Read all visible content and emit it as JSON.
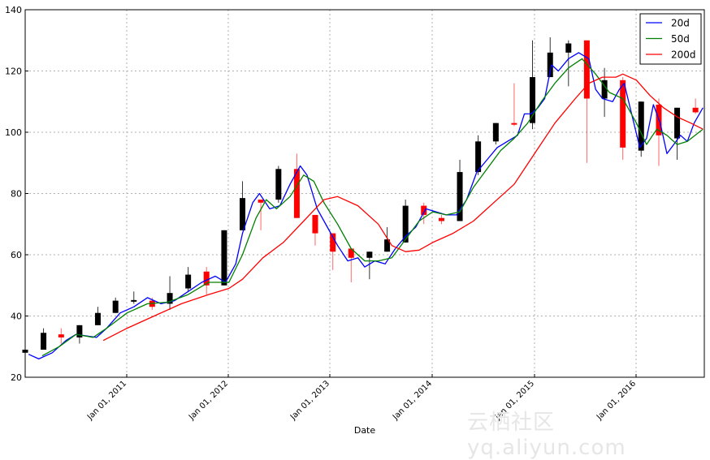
{
  "chart_data": {
    "type": "candlestick",
    "title": "",
    "xlabel": "Date",
    "ylabel": "",
    "ylim": [
      20,
      140
    ],
    "yticks": [
      20,
      40,
      60,
      80,
      100,
      120,
      140
    ],
    "xticks": [
      "Jan 01, 2011",
      "Jan 01, 2012",
      "Jan 01, 2013",
      "Jan 01, 2014",
      "Jan 01, 2015",
      "Jan 01, 2016"
    ],
    "grid": true,
    "legend": {
      "position": "upper right",
      "entries": [
        {
          "label": "20d",
          "color": "#0000ff"
        },
        {
          "label": "50d",
          "color": "#008000"
        },
        {
          "label": "200d",
          "color": "#ff0000"
        }
      ]
    },
    "candles": [
      {
        "t": 0.0,
        "o": 28,
        "c": 29,
        "h": 29,
        "l": 28
      },
      {
        "t": 0.027,
        "o": 29,
        "c": 34.5,
        "h": 36,
        "l": 29
      },
      {
        "t": 0.053,
        "o": 34,
        "c": 33,
        "h": 36,
        "l": 31
      },
      {
        "t": 0.08,
        "o": 33,
        "c": 37,
        "h": 37,
        "l": 31
      },
      {
        "t": 0.107,
        "o": 37,
        "c": 41,
        "h": 43,
        "l": 37
      },
      {
        "t": 0.133,
        "o": 41,
        "c": 45,
        "h": 46,
        "l": 41
      },
      {
        "t": 0.16,
        "o": 44.8,
        "c": 45.2,
        "h": 48,
        "l": 44
      },
      {
        "t": 0.187,
        "o": 45,
        "c": 43,
        "h": 46,
        "l": 42
      },
      {
        "t": 0.213,
        "o": 44,
        "c": 47.5,
        "h": 53,
        "l": 42
      },
      {
        "t": 0.24,
        "o": 49,
        "c": 53.5,
        "h": 56,
        "l": 48
      },
      {
        "t": 0.267,
        "o": 54.5,
        "c": 50,
        "h": 56,
        "l": 47
      },
      {
        "t": 0.293,
        "o": 50,
        "c": 68,
        "h": 68,
        "l": 50
      },
      {
        "t": 0.32,
        "o": 68,
        "c": 78.5,
        "h": 84,
        "l": 68
      },
      {
        "t": 0.347,
        "o": 78,
        "c": 77,
        "h": 78,
        "l": 68
      },
      {
        "t": 0.373,
        "o": 78,
        "c": 88,
        "h": 89,
        "l": 77
      },
      {
        "t": 0.4,
        "o": 88,
        "c": 72,
        "h": 93,
        "l": 72
      },
      {
        "t": 0.427,
        "o": 73,
        "c": 67,
        "h": 73,
        "l": 63
      },
      {
        "t": 0.453,
        "o": 67,
        "c": 61,
        "h": 67,
        "l": 55
      },
      {
        "t": 0.48,
        "o": 62,
        "c": 59,
        "h": 62,
        "l": 51
      },
      {
        "t": 0.507,
        "o": 59,
        "c": 61,
        "h": 61,
        "l": 52
      },
      {
        "t": 0.533,
        "o": 61,
        "c": 65,
        "h": 69,
        "l": 61
      },
      {
        "t": 0.56,
        "o": 64,
        "c": 76,
        "h": 78,
        "l": 64
      },
      {
        "t": 0.587,
        "o": 76,
        "c": 73,
        "h": 77,
        "l": 70
      },
      {
        "t": 0.613,
        "o": 72,
        "c": 71,
        "h": 73,
        "l": 70
      },
      {
        "t": 0.64,
        "o": 71,
        "c": 87,
        "h": 91,
        "l": 71
      },
      {
        "t": 0.667,
        "o": 87,
        "c": 97,
        "h": 99,
        "l": 86
      },
      {
        "t": 0.693,
        "o": 97,
        "c": 103,
        "h": 103,
        "l": 96
      },
      {
        "t": 0.72,
        "o": 103,
        "c": 102.5,
        "h": 116,
        "l": 102
      },
      {
        "t": 0.747,
        "o": 103,
        "c": 118,
        "h": 130,
        "l": 101
      },
      {
        "t": 0.773,
        "o": 118,
        "c": 126,
        "h": 131,
        "l": 118
      },
      {
        "t": 0.8,
        "o": 126,
        "c": 129,
        "h": 130,
        "l": 115
      },
      {
        "t": 0.827,
        "o": 130,
        "c": 111,
        "h": 130,
        "l": 90
      },
      {
        "t": 0.853,
        "o": 111,
        "c": 117,
        "h": 121,
        "l": 105
      },
      {
        "t": 0.88,
        "o": 117,
        "c": 95,
        "h": 118,
        "l": 91
      },
      {
        "t": 0.907,
        "o": 94,
        "c": 110,
        "h": 110,
        "l": 92
      },
      {
        "t": 0.933,
        "o": 109,
        "c": 99,
        "h": 111,
        "l": 89
      },
      {
        "t": 0.96,
        "o": 98,
        "c": 108,
        "h": 108,
        "l": 91
      },
      {
        "t": 0.987,
        "o": 108,
        "c": 106.5,
        "h": 111,
        "l": 106
      }
    ],
    "series": [
      {
        "name": "20d",
        "color": "#0000ff",
        "points": [
          [
            0.005,
            27.5
          ],
          [
            0.02,
            26
          ],
          [
            0.04,
            28
          ],
          [
            0.06,
            32
          ],
          [
            0.075,
            34
          ],
          [
            0.09,
            33.5
          ],
          [
            0.105,
            33
          ],
          [
            0.12,
            36
          ],
          [
            0.14,
            41
          ],
          [
            0.16,
            43
          ],
          [
            0.18,
            46
          ],
          [
            0.2,
            44
          ],
          [
            0.22,
            45
          ],
          [
            0.24,
            48
          ],
          [
            0.26,
            51
          ],
          [
            0.28,
            53
          ],
          [
            0.295,
            51
          ],
          [
            0.31,
            57
          ],
          [
            0.32,
            67
          ],
          [
            0.335,
            77
          ],
          [
            0.345,
            80
          ],
          [
            0.36,
            75
          ],
          [
            0.375,
            76
          ],
          [
            0.39,
            83
          ],
          [
            0.405,
            89
          ],
          [
            0.415,
            86
          ],
          [
            0.43,
            75
          ],
          [
            0.445,
            69
          ],
          [
            0.46,
            63
          ],
          [
            0.475,
            58
          ],
          [
            0.49,
            59
          ],
          [
            0.5,
            56
          ],
          [
            0.515,
            58
          ],
          [
            0.53,
            57
          ],
          [
            0.545,
            62
          ],
          [
            0.56,
            66
          ],
          [
            0.575,
            69
          ],
          [
            0.59,
            75
          ],
          [
            0.605,
            74
          ],
          [
            0.62,
            73
          ],
          [
            0.635,
            73
          ],
          [
            0.65,
            78
          ],
          [
            0.665,
            87
          ],
          [
            0.68,
            91
          ],
          [
            0.695,
            95
          ],
          [
            0.71,
            97
          ],
          [
            0.725,
            99
          ],
          [
            0.735,
            106
          ],
          [
            0.745,
            106
          ],
          [
            0.755,
            108
          ],
          [
            0.765,
            111
          ],
          [
            0.775,
            122
          ],
          [
            0.785,
            120
          ],
          [
            0.8,
            124
          ],
          [
            0.815,
            126
          ],
          [
            0.83,
            124
          ],
          [
            0.84,
            114
          ],
          [
            0.85,
            111
          ],
          [
            0.865,
            110
          ],
          [
            0.875,
            114
          ],
          [
            0.882,
            116
          ],
          [
            0.893,
            106
          ],
          [
            0.905,
            95
          ],
          [
            0.915,
            98
          ],
          [
            0.925,
            109
          ],
          [
            0.935,
            103
          ],
          [
            0.945,
            93
          ],
          [
            0.955,
            96
          ],
          [
            0.965,
            99
          ],
          [
            0.975,
            97
          ],
          [
            0.985,
            103
          ],
          [
            0.998,
            108
          ]
        ]
      },
      {
        "name": "50d",
        "color": "#008000",
        "points": [
          [
            0.025,
            27
          ],
          [
            0.05,
            30
          ],
          [
            0.075,
            34
          ],
          [
            0.1,
            33
          ],
          [
            0.12,
            36
          ],
          [
            0.15,
            41
          ],
          [
            0.18,
            44
          ],
          [
            0.21,
            44.5
          ],
          [
            0.24,
            47
          ],
          [
            0.27,
            51
          ],
          [
            0.3,
            51
          ],
          [
            0.32,
            60
          ],
          [
            0.34,
            72
          ],
          [
            0.355,
            78
          ],
          [
            0.37,
            75
          ],
          [
            0.39,
            79
          ],
          [
            0.41,
            86
          ],
          [
            0.425,
            84
          ],
          [
            0.44,
            77
          ],
          [
            0.46,
            70
          ],
          [
            0.48,
            62
          ],
          [
            0.5,
            58
          ],
          [
            0.52,
            58
          ],
          [
            0.54,
            59
          ],
          [
            0.56,
            65
          ],
          [
            0.58,
            71
          ],
          [
            0.6,
            74
          ],
          [
            0.62,
            73
          ],
          [
            0.64,
            74
          ],
          [
            0.66,
            82
          ],
          [
            0.68,
            88
          ],
          [
            0.7,
            94
          ],
          [
            0.72,
            98
          ],
          [
            0.74,
            103
          ],
          [
            0.76,
            110
          ],
          [
            0.78,
            116
          ],
          [
            0.8,
            121
          ],
          [
            0.82,
            124
          ],
          [
            0.84,
            119
          ],
          [
            0.86,
            113
          ],
          [
            0.88,
            111
          ],
          [
            0.9,
            103
          ],
          [
            0.915,
            96
          ],
          [
            0.93,
            101
          ],
          [
            0.945,
            99
          ],
          [
            0.96,
            96
          ],
          [
            0.975,
            97
          ],
          [
            0.998,
            101
          ]
        ]
      },
      {
        "name": "200d",
        "color": "#ff0000",
        "points": [
          [
            0.115,
            32
          ],
          [
            0.15,
            36
          ],
          [
            0.19,
            40
          ],
          [
            0.23,
            44
          ],
          [
            0.27,
            47
          ],
          [
            0.3,
            49
          ],
          [
            0.32,
            52
          ],
          [
            0.35,
            59
          ],
          [
            0.38,
            64
          ],
          [
            0.41,
            71
          ],
          [
            0.44,
            78
          ],
          [
            0.46,
            79
          ],
          [
            0.49,
            76
          ],
          [
            0.52,
            70
          ],
          [
            0.54,
            63
          ],
          [
            0.56,
            61
          ],
          [
            0.58,
            61.5
          ],
          [
            0.6,
            64
          ],
          [
            0.63,
            67
          ],
          [
            0.66,
            71
          ],
          [
            0.69,
            77
          ],
          [
            0.72,
            83
          ],
          [
            0.75,
            93
          ],
          [
            0.78,
            103
          ],
          [
            0.81,
            111
          ],
          [
            0.83,
            116
          ],
          [
            0.85,
            118
          ],
          [
            0.87,
            118
          ],
          [
            0.88,
            119
          ],
          [
            0.9,
            117
          ],
          [
            0.92,
            112
          ],
          [
            0.94,
            108
          ],
          [
            0.96,
            105
          ],
          [
            0.98,
            103
          ],
          [
            0.998,
            101
          ]
        ]
      }
    ]
  },
  "axes": {
    "y_labels": [
      "20",
      "40",
      "60",
      "80",
      "100",
      "120",
      "140"
    ],
    "x_labels": [
      "Jan 01, 2011",
      "Jan 01, 2012",
      "Jan 01, 2013",
      "Jan 01, 2014",
      "Jan 01, 2015",
      "Jan 01, 2016"
    ],
    "xlabel": "Date"
  },
  "legend": {
    "items": [
      "20d",
      "50d",
      "200d"
    ]
  },
  "watermark": "云栖社区 yq.aliyun.com",
  "colors": {
    "up": "#000000",
    "down": "#ff0000",
    "grid": "#b0b0b0"
  }
}
